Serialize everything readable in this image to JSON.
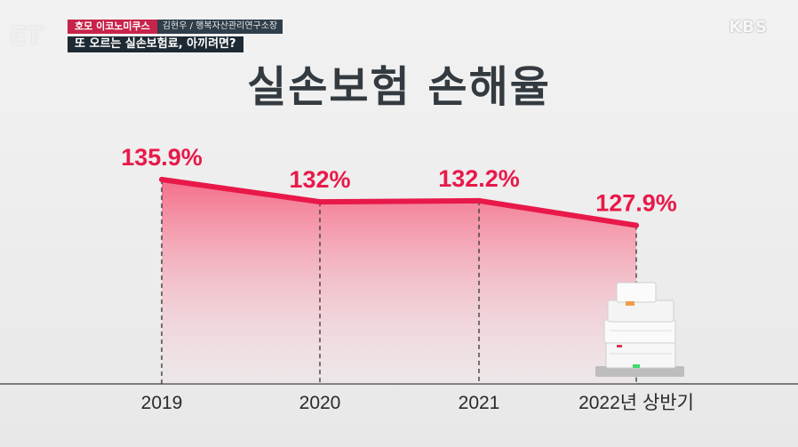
{
  "broadcast": {
    "channel_mark": "ET",
    "program": "호모 이코노미쿠스",
    "guest": "김현우 / 행복자산관리연구소장",
    "headline": "또 오르는 실손보험료, 아끼려면?",
    "network": "KBS"
  },
  "chart_data": {
    "type": "area",
    "title": "실손보험 손해율",
    "categories": [
      "2019",
      "2020",
      "2021",
      "2022년 상반기"
    ],
    "series": [
      {
        "values": [
          135.9,
          132,
          132.2,
          127.9
        ]
      }
    ],
    "data_labels": [
      "135.9%",
      "132%",
      "132.2%",
      "127.9%"
    ],
    "ylim": [
      100,
      140
    ],
    "grid": false,
    "line_color": "#e8194a",
    "fill_color": "#f5607e"
  }
}
